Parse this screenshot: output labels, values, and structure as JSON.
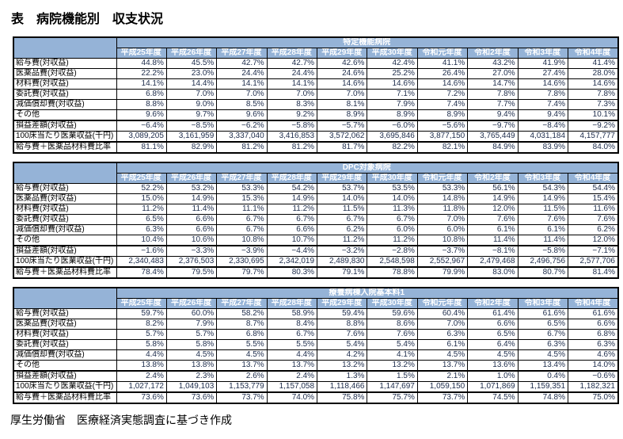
{
  "title": "表　病院機能別　収支状況",
  "source_note": "厚生労働省　医療経済実態調査に基づき作成",
  "colors": {
    "header_bg": "#95B3D7",
    "header_text": "#FFFFFF",
    "border": "#000000"
  },
  "years": [
    "平成25年度",
    "平成26年度",
    "平成27年度",
    "平成28年度",
    "平成29年度",
    "平成30年度",
    "令和元年度",
    "令和2年度",
    "令和3年度",
    "令和4年度"
  ],
  "row_labels": [
    "給与費(対収益)",
    "医薬品費(対収益)",
    "材料費(対収益)",
    "委託費(対収益)",
    "減価償却費(対収益)",
    "その他",
    "損益差額(対収益)",
    "100床当たり医業収益(千円)",
    "給与費＋医薬品材料費比率"
  ],
  "tables": [
    {
      "name": "特定機能病院",
      "rows": [
        [
          "44.8%",
          "45.5%",
          "42.7%",
          "42.7%",
          "42.6%",
          "42.4%",
          "41.1%",
          "43.2%",
          "41.9%",
          "41.4%"
        ],
        [
          "22.2%",
          "23.0%",
          "24.4%",
          "24.4%",
          "24.6%",
          "25.2%",
          "26.4%",
          "27.0%",
          "27.4%",
          "28.0%"
        ],
        [
          "14.1%",
          "14.4%",
          "14.1%",
          "14.1%",
          "14.6%",
          "14.6%",
          "14.6%",
          "14.7%",
          "14.6%",
          "14.6%"
        ],
        [
          "6.8%",
          "7.0%",
          "7.0%",
          "7.0%",
          "7.0%",
          "7.1%",
          "7.2%",
          "7.8%",
          "7.8%",
          "7.8%"
        ],
        [
          "8.8%",
          "9.0%",
          "8.5%",
          "8.3%",
          "8.1%",
          "7.9%",
          "7.4%",
          "7.7%",
          "7.4%",
          "7.3%"
        ],
        [
          "9.6%",
          "9.7%",
          "9.6%",
          "9.2%",
          "8.9%",
          "8.9%",
          "8.9%",
          "9.4%",
          "9.4%",
          "10.1%"
        ],
        [
          "−6.4%",
          "−8.5%",
          "−6.2%",
          "−5.8%",
          "−5.7%",
          "−6.0%",
          "−5.6%",
          "−9.7%",
          "−8.4%",
          "−9.2%"
        ],
        [
          "3,089,205",
          "3,161,959",
          "3,337,040",
          "3,416,853",
          "3,572,062",
          "3,695,846",
          "3,877,150",
          "3,765,449",
          "4,031,184",
          "4,157,777"
        ],
        [
          "81.1%",
          "82.9%",
          "81.2%",
          "81.2%",
          "81.7%",
          "82.2%",
          "82.1%",
          "84.9%",
          "83.9%",
          "84.0%"
        ]
      ]
    },
    {
      "name": "DPC対象病院",
      "rows": [
        [
          "52.2%",
          "53.2%",
          "53.3%",
          "54.2%",
          "53.7%",
          "53.5%",
          "53.3%",
          "56.1%",
          "54.3%",
          "54.4%"
        ],
        [
          "15.0%",
          "14.9%",
          "15.3%",
          "14.9%",
          "14.0%",
          "14.0%",
          "14.8%",
          "14.9%",
          "14.9%",
          "15.4%"
        ],
        [
          "11.2%",
          "11.4%",
          "11.1%",
          "11.2%",
          "11.5%",
          "11.3%",
          "11.8%",
          "12.0%",
          "11.5%",
          "11.6%"
        ],
        [
          "6.5%",
          "6.6%",
          "6.7%",
          "6.7%",
          "6.7%",
          "6.7%",
          "7.0%",
          "7.6%",
          "7.6%",
          "7.6%"
        ],
        [
          "6.3%",
          "6.6%",
          "6.7%",
          "6.6%",
          "6.2%",
          "6.0%",
          "6.0%",
          "6.1%",
          "6.1%",
          "6.2%"
        ],
        [
          "10.4%",
          "10.6%",
          "10.8%",
          "10.7%",
          "11.2%",
          "11.2%",
          "10.8%",
          "11.4%",
          "11.4%",
          "12.0%"
        ],
        [
          "−1.6%",
          "−3.3%",
          "−3.9%",
          "−4.4%",
          "−3.2%",
          "−2.8%",
          "−3.7%",
          "−8.1%",
          "−5.8%",
          "−7.1%"
        ],
        [
          "2,340,483",
          "2,376,503",
          "2,330,695",
          "2,342,019",
          "2,489,830",
          "2,548,598",
          "2,552,967",
          "2,479,468",
          "2,496,756",
          "2,577,706"
        ],
        [
          "78.4%",
          "79.5%",
          "79.7%",
          "80.3%",
          "79.1%",
          "78.8%",
          "79.9%",
          "83.0%",
          "80.7%",
          "81.4%"
        ]
      ]
    },
    {
      "name": "療養病棟入院基本料1",
      "rows": [
        [
          "59.7%",
          "60.0%",
          "58.2%",
          "58.9%",
          "59.4%",
          "59.6%",
          "60.4%",
          "61.4%",
          "61.6%",
          "61.6%"
        ],
        [
          "8.2%",
          "7.9%",
          "8.7%",
          "8.4%",
          "8.8%",
          "8.6%",
          "7.0%",
          "6.6%",
          "6.5%",
          "6.6%"
        ],
        [
          "5.7%",
          "5.7%",
          "6.8%",
          "6.7%",
          "7.6%",
          "7.6%",
          "6.3%",
          "6.5%",
          "6.7%",
          "6.8%"
        ],
        [
          "5.8%",
          "5.8%",
          "5.5%",
          "5.5%",
          "5.4%",
          "5.4%",
          "6.1%",
          "6.4%",
          "6.3%",
          "6.3%"
        ],
        [
          "4.4%",
          "4.5%",
          "4.5%",
          "4.4%",
          "4.2%",
          "4.1%",
          "4.5%",
          "4.5%",
          "4.5%",
          "4.6%"
        ],
        [
          "13.8%",
          "13.8%",
          "13.7%",
          "13.7%",
          "13.2%",
          "13.2%",
          "13.7%",
          "13.6%",
          "13.4%",
          "14.0%"
        ],
        [
          "2.4%",
          "2.3%",
          "2.6%",
          "2.4%",
          "1.3%",
          "1.5%",
          "2.1%",
          "1.0%",
          "0.4%",
          "−0.6%"
        ],
        [
          "1,027,172",
          "1,049,103",
          "1,153,779",
          "1,157,058",
          "1,118,466",
          "1,147,697",
          "1,059,150",
          "1,071,869",
          "1,159,351",
          "1,182,321"
        ],
        [
          "73.6%",
          "73.6%",
          "73.7%",
          "74.0%",
          "75.8%",
          "75.7%",
          "73.7%",
          "74.5%",
          "74.8%",
          "75.0%"
        ]
      ]
    }
  ]
}
